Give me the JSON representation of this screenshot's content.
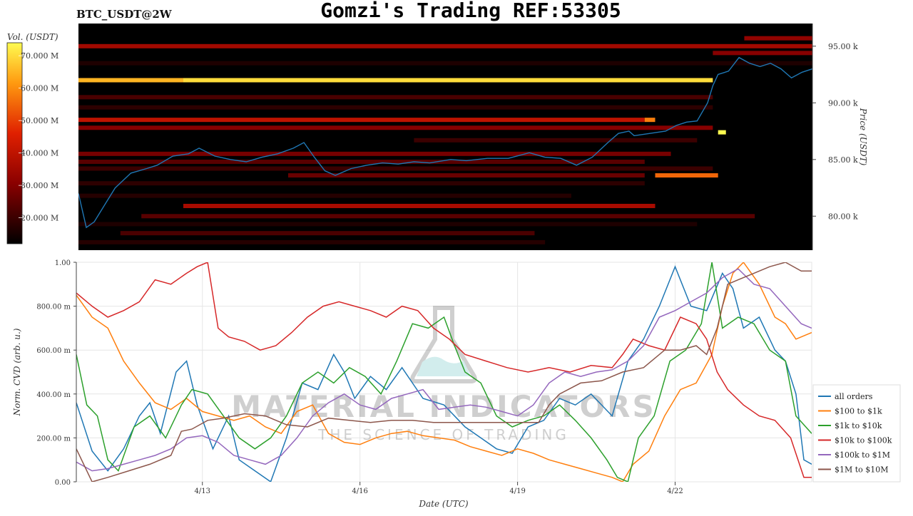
{
  "header": {
    "title": "Gomzi's Trading REF:53305",
    "symbol": "BTC_USDT@2W"
  },
  "colors": {
    "price_line": "#1f77b4",
    "heat_dark": "#000000",
    "heat_red": "#d21a00",
    "heat_yellow": "#fffb40"
  },
  "watermark": {
    "brand": "MATERIAL INDICATORS",
    "tagline": "THE SCIENCE OF TRADING",
    "icon": "flask-icon"
  },
  "chart_data": [
    {
      "type": "heatmap",
      "title": "BTC_USDT@2W",
      "ylabel": "Price (USDT)",
      "ylim": [
        77000,
        97000
      ],
      "yticks": [
        {
          "value": 80000,
          "label": "80.00 k"
        },
        {
          "value": 85000,
          "label": "85.00 k"
        },
        {
          "value": 90000,
          "label": "90.00 k"
        },
        {
          "value": 95000,
          "label": "95.00 k"
        }
      ],
      "colorbar": {
        "label": "Vol. (USDT)",
        "range": [
          12000000,
          74000000
        ],
        "ticks": [
          {
            "value": 20000000,
            "label": "20.000 M"
          },
          {
            "value": 30000000,
            "label": "30.000 M"
          },
          {
            "value": 40000000,
            "label": "40.000 M"
          },
          {
            "value": 50000000,
            "label": "50.000 M"
          },
          {
            "value": 60000000,
            "label": "60.000 M"
          },
          {
            "value": 70000000,
            "label": "70.000 M"
          }
        ]
      },
      "x_days": [
        10.6,
        24.6
      ],
      "price_series": {
        "x": [
          10.6,
          10.75,
          10.9,
          11.1,
          11.3,
          11.6,
          11.9,
          12.1,
          12.4,
          12.7,
          12.9,
          13.2,
          13.5,
          13.8,
          14.1,
          14.4,
          14.7,
          14.9,
          15.1,
          15.3,
          15.5,
          15.8,
          16.1,
          16.4,
          16.7,
          17.0,
          17.3,
          17.7,
          18.0,
          18.4,
          18.8,
          19.2,
          19.5,
          19.8,
          20.1,
          20.4,
          20.7,
          20.9,
          21.1,
          21.2,
          21.5,
          21.8,
          22.0,
          22.2,
          22.4,
          22.6,
          22.7,
          22.8,
          23.0,
          23.2,
          23.4,
          23.6,
          23.8,
          24.0,
          24.2,
          24.4,
          24.6
        ],
        "y": [
          82000,
          79000,
          79500,
          81000,
          82500,
          83800,
          84200,
          84500,
          85300,
          85500,
          86000,
          85300,
          85000,
          84800,
          85200,
          85500,
          86000,
          86500,
          85200,
          84000,
          83600,
          84200,
          84500,
          84700,
          84600,
          84800,
          84700,
          85000,
          84900,
          85100,
          85100,
          85600,
          85200,
          85100,
          84500,
          85200,
          86500,
          87300,
          87500,
          87100,
          87300,
          87500,
          88000,
          88300,
          88400,
          90000,
          91500,
          92500,
          92800,
          94000,
          93500,
          93200,
          93500,
          93000,
          92200,
          92700,
          93000
        ]
      },
      "liquidity_bands": [
        {
          "price": 95700,
          "x0": 23.3,
          "x1": 24.6,
          "vol": 32000000
        },
        {
          "price": 95000,
          "x0": 10.6,
          "x1": 24.6,
          "vol": 35000000
        },
        {
          "price": 94400,
          "x0": 22.7,
          "x1": 24.6,
          "vol": 30000000
        },
        {
          "price": 93500,
          "x0": 10.6,
          "x1": 24.6,
          "vol": 16000000
        },
        {
          "price": 92000,
          "x0": 10.6,
          "x1": 12.6,
          "vol": 65000000
        },
        {
          "price": 92000,
          "x0": 12.6,
          "x1": 22.7,
          "vol": 70000000
        },
        {
          "price": 90500,
          "x0": 10.6,
          "x1": 22.7,
          "vol": 22000000
        },
        {
          "price": 89600,
          "x0": 10.6,
          "x1": 22.7,
          "vol": 18000000
        },
        {
          "price": 88500,
          "x0": 10.6,
          "x1": 21.4,
          "vol": 40000000
        },
        {
          "price": 88500,
          "x0": 21.4,
          "x1": 21.6,
          "vol": 58000000
        },
        {
          "price": 87800,
          "x0": 10.6,
          "x1": 22.7,
          "vol": 30000000
        },
        {
          "price": 87400,
          "x0": 22.8,
          "x1": 22.95,
          "vol": 74000000
        },
        {
          "price": 86700,
          "x0": 17.0,
          "x1": 22.4,
          "vol": 20000000
        },
        {
          "price": 85500,
          "x0": 10.6,
          "x1": 21.9,
          "vol": 28000000
        },
        {
          "price": 84800,
          "x0": 10.6,
          "x1": 21.4,
          "vol": 24000000
        },
        {
          "price": 84200,
          "x0": 10.6,
          "x1": 22.7,
          "vol": 20000000
        },
        {
          "price": 83600,
          "x0": 21.6,
          "x1": 22.8,
          "vol": 55000000
        },
        {
          "price": 83600,
          "x0": 14.6,
          "x1": 21.4,
          "vol": 26000000
        },
        {
          "price": 82900,
          "x0": 10.6,
          "x1": 21.4,
          "vol": 18000000
        },
        {
          "price": 81800,
          "x0": 10.6,
          "x1": 20.0,
          "vol": 17000000
        },
        {
          "price": 80900,
          "x0": 12.6,
          "x1": 21.6,
          "vol": 36000000
        },
        {
          "price": 80000,
          "x0": 11.8,
          "x1": 23.5,
          "vol": 24000000
        },
        {
          "price": 79300,
          "x0": 10.6,
          "x1": 22.4,
          "vol": 16000000
        },
        {
          "price": 78500,
          "x0": 11.4,
          "x1": 19.3,
          "vol": 22000000
        },
        {
          "price": 77700,
          "x0": 10.6,
          "x1": 19.5,
          "vol": 17000000
        }
      ]
    },
    {
      "type": "line",
      "xlabel": "Date (UTC)",
      "ylabel": "Norm. CVD (arb. u.)",
      "ylim": [
        0,
        1
      ],
      "yticks": [
        {
          "value": 0,
          "label": "0.00"
        },
        {
          "value": 0.2,
          "label": "200.00 m"
        },
        {
          "value": 0.4,
          "label": "400.00 m"
        },
        {
          "value": 0.6,
          "label": "600.00 m"
        },
        {
          "value": 0.8,
          "label": "800.00 m"
        },
        {
          "value": 1.0,
          "label": "1.00"
        }
      ],
      "xticks": [
        {
          "value": 13,
          "label": "4/13"
        },
        {
          "value": 16,
          "label": "4/16"
        },
        {
          "value": 19,
          "label": "4/19"
        },
        {
          "value": 22,
          "label": "4/22"
        }
      ],
      "grid": true,
      "legend_position": "right",
      "series": [
        {
          "name": "all orders",
          "color": "#1f77b4",
          "x": [
            10.6,
            10.9,
            11.2,
            11.5,
            11.8,
            12.0,
            12.2,
            12.5,
            12.7,
            12.9,
            13.2,
            13.5,
            13.7,
            14.0,
            14.3,
            14.6,
            14.9,
            15.2,
            15.5,
            15.7,
            15.9,
            16.2,
            16.5,
            16.8,
            17.2,
            17.6,
            18.0,
            18.3,
            18.6,
            18.9,
            19.2,
            19.5,
            19.8,
            20.1,
            20.4,
            20.8,
            21.1,
            21.4,
            21.7,
            22.0,
            22.3,
            22.6,
            22.9,
            23.1,
            23.3,
            23.6,
            23.9,
            24.1,
            24.3,
            24.45,
            24.6
          ],
          "y": [
            0.36,
            0.14,
            0.05,
            0.15,
            0.3,
            0.36,
            0.22,
            0.5,
            0.55,
            0.35,
            0.15,
            0.3,
            0.1,
            0.05,
            0.0,
            0.2,
            0.45,
            0.42,
            0.58,
            0.5,
            0.38,
            0.48,
            0.42,
            0.52,
            0.38,
            0.35,
            0.25,
            0.2,
            0.15,
            0.13,
            0.25,
            0.28,
            0.38,
            0.35,
            0.4,
            0.3,
            0.55,
            0.65,
            0.8,
            0.98,
            0.8,
            0.78,
            0.95,
            0.88,
            0.7,
            0.75,
            0.6,
            0.55,
            0.4,
            0.1,
            0.08
          ]
        },
        {
          "name": "$100 to $1k",
          "color": "#ff7f0e",
          "x": [
            10.6,
            10.9,
            11.2,
            11.5,
            11.8,
            12.1,
            12.4,
            12.7,
            13.0,
            13.3,
            13.6,
            13.9,
            14.2,
            14.5,
            14.8,
            15.1,
            15.4,
            15.7,
            16.0,
            16.3,
            16.6,
            16.9,
            17.2,
            17.5,
            17.8,
            18.1,
            18.4,
            18.7,
            19.0,
            19.3,
            19.6,
            19.9,
            20.2,
            20.5,
            20.8,
            21.0,
            21.2,
            21.5,
            21.8,
            22.1,
            22.4,
            22.7,
            22.9,
            23.1,
            23.3,
            23.6,
            23.9,
            24.1,
            24.3,
            24.6
          ],
          "y": [
            0.85,
            0.75,
            0.7,
            0.55,
            0.45,
            0.36,
            0.33,
            0.38,
            0.32,
            0.3,
            0.28,
            0.3,
            0.25,
            0.22,
            0.32,
            0.35,
            0.22,
            0.18,
            0.17,
            0.2,
            0.22,
            0.23,
            0.21,
            0.2,
            0.19,
            0.16,
            0.14,
            0.12,
            0.15,
            0.13,
            0.1,
            0.08,
            0.06,
            0.04,
            0.02,
            0.0,
            0.08,
            0.14,
            0.3,
            0.42,
            0.45,
            0.58,
            0.8,
            0.95,
            1.0,
            0.9,
            0.75,
            0.72,
            0.65,
            0.68
          ]
        },
        {
          "name": "$1k to $10k",
          "color": "#2ca02c",
          "x": [
            10.6,
            10.8,
            11.0,
            11.2,
            11.4,
            11.7,
            12.0,
            12.3,
            12.6,
            12.8,
            13.1,
            13.4,
            13.7,
            14.0,
            14.3,
            14.6,
            14.9,
            15.2,
            15.5,
            15.8,
            16.1,
            16.4,
            16.7,
            17.0,
            17.3,
            17.6,
            17.8,
            18.0,
            18.3,
            18.6,
            18.9,
            19.2,
            19.5,
            19.8,
            20.1,
            20.4,
            20.7,
            20.9,
            21.1,
            21.3,
            21.6,
            21.9,
            22.2,
            22.5,
            22.7,
            22.9,
            23.2,
            23.5,
            23.8,
            24.1,
            24.3,
            24.6
          ],
          "y": [
            0.58,
            0.35,
            0.3,
            0.1,
            0.05,
            0.25,
            0.3,
            0.2,
            0.35,
            0.42,
            0.4,
            0.3,
            0.2,
            0.15,
            0.2,
            0.3,
            0.45,
            0.5,
            0.45,
            0.52,
            0.48,
            0.4,
            0.55,
            0.72,
            0.7,
            0.75,
            0.62,
            0.5,
            0.45,
            0.3,
            0.25,
            0.28,
            0.3,
            0.35,
            0.28,
            0.2,
            0.1,
            0.02,
            0.0,
            0.2,
            0.3,
            0.55,
            0.6,
            0.72,
            1.0,
            0.7,
            0.75,
            0.72,
            0.6,
            0.55,
            0.3,
            0.22
          ]
        },
        {
          "name": "$10k to $100k",
          "color": "#d62728",
          "x": [
            10.6,
            10.9,
            11.2,
            11.5,
            11.8,
            12.1,
            12.4,
            12.7,
            12.9,
            13.1,
            13.3,
            13.5,
            13.8,
            14.1,
            14.4,
            14.7,
            15.0,
            15.3,
            15.6,
            15.9,
            16.2,
            16.5,
            16.8,
            17.1,
            17.4,
            17.7,
            18.0,
            18.4,
            18.8,
            19.2,
            19.6,
            20.0,
            20.4,
            20.8,
            21.0,
            21.2,
            21.5,
            21.8,
            22.1,
            22.4,
            22.6,
            22.8,
            23.0,
            23.3,
            23.6,
            23.9,
            24.2,
            24.45,
            24.6
          ],
          "y": [
            0.86,
            0.8,
            0.75,
            0.78,
            0.82,
            0.92,
            0.9,
            0.95,
            0.98,
            1.0,
            0.7,
            0.66,
            0.64,
            0.6,
            0.62,
            0.68,
            0.75,
            0.8,
            0.82,
            0.8,
            0.78,
            0.75,
            0.8,
            0.78,
            0.7,
            0.65,
            0.58,
            0.55,
            0.52,
            0.5,
            0.52,
            0.5,
            0.53,
            0.52,
            0.58,
            0.65,
            0.62,
            0.6,
            0.75,
            0.72,
            0.65,
            0.5,
            0.42,
            0.35,
            0.3,
            0.28,
            0.2,
            0.02,
            0.02
          ]
        },
        {
          "name": "$100k to $1M",
          "color": "#9467bd",
          "x": [
            10.6,
            10.9,
            11.2,
            11.5,
            11.8,
            12.1,
            12.4,
            12.7,
            13.0,
            13.3,
            13.6,
            13.9,
            14.2,
            14.5,
            14.8,
            15.1,
            15.4,
            15.7,
            16.0,
            16.3,
            16.6,
            16.9,
            17.2,
            17.5,
            17.8,
            18.1,
            18.4,
            18.7,
            19.0,
            19.3,
            19.6,
            19.9,
            20.2,
            20.5,
            20.8,
            21.1,
            21.4,
            21.7,
            22.0,
            22.3,
            22.6,
            22.9,
            23.2,
            23.5,
            23.8,
            24.1,
            24.4,
            24.6
          ],
          "y": [
            0.09,
            0.05,
            0.06,
            0.08,
            0.1,
            0.12,
            0.15,
            0.2,
            0.21,
            0.18,
            0.12,
            0.1,
            0.08,
            0.12,
            0.2,
            0.3,
            0.36,
            0.4,
            0.35,
            0.33,
            0.38,
            0.4,
            0.42,
            0.33,
            0.34,
            0.35,
            0.34,
            0.32,
            0.3,
            0.35,
            0.45,
            0.5,
            0.48,
            0.5,
            0.51,
            0.55,
            0.62,
            0.75,
            0.78,
            0.82,
            0.86,
            0.93,
            0.97,
            0.9,
            0.88,
            0.8,
            0.72,
            0.7
          ]
        },
        {
          "name": "$1M to $10M",
          "color": "#8c564b",
          "x": [
            10.6,
            10.9,
            11.2,
            11.6,
            12.0,
            12.4,
            12.6,
            12.8,
            13.1,
            13.4,
            13.8,
            14.2,
            14.6,
            15.0,
            15.4,
            15.8,
            16.2,
            16.6,
            17.0,
            17.4,
            17.8,
            18.2,
            18.6,
            19.0,
            19.4,
            19.6,
            19.8,
            20.2,
            20.6,
            21.0,
            21.4,
            21.8,
            22.1,
            22.4,
            22.6,
            22.8,
            23.0,
            23.2,
            23.5,
            23.8,
            24.1,
            24.4,
            24.6
          ],
          "y": [
            0.15,
            0.0,
            0.02,
            0.05,
            0.08,
            0.12,
            0.23,
            0.24,
            0.28,
            0.29,
            0.31,
            0.3,
            0.26,
            0.25,
            0.29,
            0.28,
            0.27,
            0.28,
            0.28,
            0.27,
            0.27,
            0.27,
            0.27,
            0.27,
            0.27,
            0.35,
            0.4,
            0.45,
            0.46,
            0.5,
            0.52,
            0.6,
            0.6,
            0.62,
            0.58,
            0.7,
            0.9,
            0.92,
            0.95,
            0.98,
            1.0,
            0.96,
            0.96
          ]
        }
      ]
    }
  ]
}
